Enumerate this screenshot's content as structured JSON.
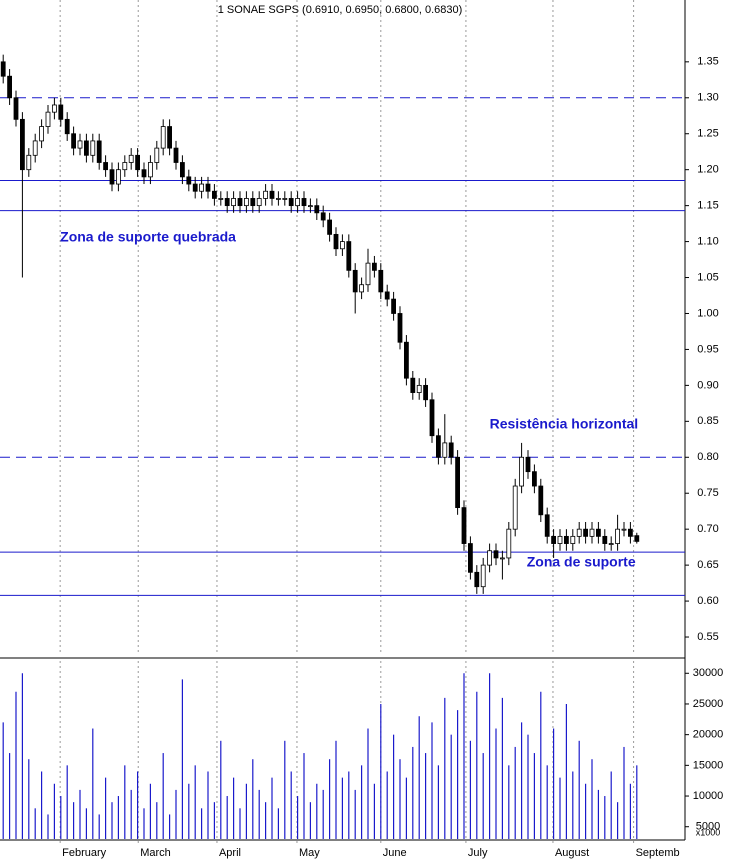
{
  "chart_data": [
    {
      "type": "candlestick",
      "title": "1 SONAE SGPS (0.6910, 0.6950, 0.6800, 0.6830)",
      "open": [
        1.35,
        1.33,
        1.3,
        1.27,
        1.2,
        1.22,
        1.24,
        1.26,
        1.28,
        1.29,
        1.27,
        1.25,
        1.23,
        1.24,
        1.22,
        1.24,
        1.21,
        1.2,
        1.18,
        1.2,
        1.21,
        1.22,
        1.2,
        1.19,
        1.21,
        1.23,
        1.26,
        1.23,
        1.21,
        1.19,
        1.18,
        1.17,
        1.18,
        1.17,
        1.16,
        1.16,
        1.15,
        1.16,
        1.15,
        1.16,
        1.15,
        1.16,
        1.17,
        1.16,
        1.16,
        1.16,
        1.15,
        1.16,
        1.15,
        1.15,
        1.14,
        1.13,
        1.11,
        1.09,
        1.1,
        1.06,
        1.03,
        1.04,
        1.07,
        1.06,
        1.03,
        1.02,
        1.0,
        0.96,
        0.91,
        0.89,
        0.9,
        0.88,
        0.83,
        0.8,
        0.82,
        0.8,
        0.73,
        0.68,
        0.64,
        0.62,
        0.65,
        0.67,
        0.66,
        0.66,
        0.7,
        0.76,
        0.8,
        0.78,
        0.76,
        0.72,
        0.69,
        0.68,
        0.69,
        0.68,
        0.69,
        0.7,
        0.69,
        0.7,
        0.69,
        0.68,
        0.68,
        0.7,
        0.7,
        0.691
      ],
      "high": [
        1.36,
        1.34,
        1.31,
        1.28,
        1.23,
        1.25,
        1.27,
        1.29,
        1.3,
        1.3,
        1.28,
        1.26,
        1.25,
        1.25,
        1.25,
        1.25,
        1.22,
        1.21,
        1.21,
        1.22,
        1.23,
        1.23,
        1.21,
        1.22,
        1.24,
        1.27,
        1.27,
        1.24,
        1.22,
        1.2,
        1.19,
        1.19,
        1.19,
        1.18,
        1.17,
        1.17,
        1.17,
        1.17,
        1.17,
        1.17,
        1.17,
        1.18,
        1.18,
        1.17,
        1.17,
        1.17,
        1.17,
        1.17,
        1.16,
        1.16,
        1.15,
        1.14,
        1.12,
        1.11,
        1.11,
        1.07,
        1.05,
        1.09,
        1.08,
        1.07,
        1.04,
        1.03,
        1.01,
        0.97,
        0.92,
        0.91,
        0.91,
        0.89,
        0.84,
        0.86,
        0.83,
        0.81,
        0.74,
        0.69,
        0.65,
        0.66,
        0.68,
        0.68,
        0.67,
        0.71,
        0.77,
        0.82,
        0.81,
        0.79,
        0.77,
        0.73,
        0.7,
        0.7,
        0.7,
        0.7,
        0.71,
        0.71,
        0.71,
        0.71,
        0.7,
        0.69,
        0.72,
        0.71,
        0.71,
        0.695
      ],
      "low": [
        1.32,
        1.29,
        1.26,
        1.05,
        1.19,
        1.21,
        1.23,
        1.25,
        1.27,
        1.26,
        1.24,
        1.22,
        1.22,
        1.21,
        1.21,
        1.2,
        1.19,
        1.17,
        1.17,
        1.19,
        1.2,
        1.19,
        1.18,
        1.18,
        1.2,
        1.22,
        1.22,
        1.2,
        1.18,
        1.17,
        1.16,
        1.16,
        1.16,
        1.15,
        1.15,
        1.14,
        1.14,
        1.14,
        1.14,
        1.14,
        1.14,
        1.15,
        1.15,
        1.15,
        1.15,
        1.14,
        1.14,
        1.14,
        1.14,
        1.13,
        1.12,
        1.1,
        1.08,
        1.08,
        1.05,
        1.0,
        1.02,
        1.03,
        1.05,
        1.02,
        1.01,
        0.99,
        0.95,
        0.9,
        0.88,
        0.88,
        0.87,
        0.82,
        0.79,
        0.79,
        0.79,
        0.72,
        0.67,
        0.63,
        0.61,
        0.61,
        0.64,
        0.65,
        0.63,
        0.65,
        0.69,
        0.75,
        0.77,
        0.75,
        0.71,
        0.68,
        0.66,
        0.67,
        0.67,
        0.67,
        0.68,
        0.68,
        0.68,
        0.68,
        0.67,
        0.67,
        0.67,
        0.69,
        0.68,
        0.68
      ],
      "close": [
        1.33,
        1.3,
        1.27,
        1.2,
        1.22,
        1.24,
        1.26,
        1.28,
        1.29,
        1.27,
        1.25,
        1.23,
        1.24,
        1.22,
        1.24,
        1.21,
        1.2,
        1.18,
        1.2,
        1.21,
        1.22,
        1.2,
        1.19,
        1.21,
        1.23,
        1.26,
        1.23,
        1.21,
        1.19,
        1.18,
        1.17,
        1.18,
        1.17,
        1.16,
        1.16,
        1.15,
        1.16,
        1.15,
        1.16,
        1.15,
        1.16,
        1.17,
        1.16,
        1.16,
        1.16,
        1.15,
        1.16,
        1.15,
        1.15,
        1.14,
        1.13,
        1.11,
        1.09,
        1.1,
        1.06,
        1.03,
        1.04,
        1.07,
        1.06,
        1.03,
        1.02,
        1.0,
        0.96,
        0.91,
        0.89,
        0.9,
        0.88,
        0.83,
        0.8,
        0.82,
        0.8,
        0.73,
        0.68,
        0.64,
        0.62,
        0.65,
        0.67,
        0.66,
        0.66,
        0.7,
        0.76,
        0.8,
        0.78,
        0.76,
        0.72,
        0.69,
        0.68,
        0.69,
        0.68,
        0.69,
        0.7,
        0.69,
        0.7,
        0.69,
        0.68,
        0.68,
        0.7,
        0.7,
        0.69,
        0.683
      ],
      "xlim": [
        0,
        100
      ],
      "ylim": [
        0.525,
        1.436
      ],
      "yticks": [
        {
          "value": 1.35,
          "label": "1.35"
        },
        {
          "value": 1.3,
          "label": "1.30"
        },
        {
          "value": 1.25,
          "label": "1.25"
        },
        {
          "value": 1.2,
          "label": "1.20"
        },
        {
          "value": 1.15,
          "label": "1.15"
        },
        {
          "value": 1.1,
          "label": "1.10"
        },
        {
          "value": 1.05,
          "label": "1.05"
        },
        {
          "value": 1,
          "label": "1.00"
        },
        {
          "value": 0.95,
          "label": "0.95"
        },
        {
          "value": 0.9,
          "label": "0.90"
        },
        {
          "value": 0.85,
          "label": "0.85"
        },
        {
          "value": 0.8,
          "label": "0.80"
        },
        {
          "value": 0.75,
          "label": "0.75"
        },
        {
          "value": 0.7,
          "label": "0.70"
        },
        {
          "value": 0.65,
          "label": "0.65"
        },
        {
          "value": 0.6,
          "label": "0.60"
        },
        {
          "value": 0.55,
          "label": "0.55"
        }
      ],
      "up_color": "#ffffff",
      "down_color": "#000000",
      "line_color": "#1a1acc",
      "reference_lines": [
        {
          "value": 1.3,
          "style": "dashed"
        },
        {
          "value": 1.185,
          "style": "solid"
        },
        {
          "value": 1.143,
          "style": "solid"
        },
        {
          "value": 0.8,
          "style": "dashed"
        },
        {
          "value": 0.668,
          "style": "solid"
        },
        {
          "value": 0.608,
          "style": "solid"
        }
      ],
      "annotations": [
        {
          "text": "Zona de suporte quebrada",
          "x": 9.4,
          "y": 1.105
        },
        {
          "text": "Resistência horizontal",
          "x": 76.5,
          "y": 0.845
        },
        {
          "text": "Zona de suporte",
          "x": 82.3,
          "y": 0.653
        }
      ]
    },
    {
      "type": "bar",
      "color": "#1a1acc",
      "unit_label": "x1000",
      "values": [
        22000,
        17000,
        27000,
        30000,
        16000,
        8000,
        14000,
        7000,
        12000,
        10000,
        15000,
        9000,
        11000,
        8000,
        21000,
        7000,
        13000,
        9000,
        10000,
        15000,
        11000,
        14000,
        8000,
        12000,
        9000,
        17000,
        7000,
        11000,
        29000,
        12000,
        15000,
        8000,
        14000,
        9000,
        19000,
        10000,
        13000,
        8000,
        12000,
        16000,
        11000,
        9000,
        13000,
        8000,
        19000,
        14000,
        10000,
        17000,
        9000,
        12000,
        11000,
        16000,
        19000,
        13000,
        14000,
        11000,
        15000,
        21000,
        12000,
        25000,
        14000,
        20000,
        16000,
        13000,
        18000,
        23000,
        17000,
        22000,
        15000,
        26000,
        20000,
        24000,
        30000,
        19000,
        27000,
        17000,
        30000,
        21000,
        26000,
        15000,
        18000,
        22000,
        20000,
        17000,
        27000,
        15000,
        21000,
        13000,
        25000,
        14000,
        19000,
        12000,
        16000,
        11000,
        10000,
        14000,
        9000,
        18000,
        12000,
        15000
      ],
      "xlim": [
        0,
        100
      ],
      "ylim": [
        3000,
        32000
      ],
      "yticks": [
        5000,
        10000,
        15000,
        20000,
        25000,
        30000
      ],
      "xticks": [
        {
          "value": 9.4,
          "label": "February"
        },
        {
          "value": 21.6,
          "label": "March"
        },
        {
          "value": 33.9,
          "label": "April"
        },
        {
          "value": 46.4,
          "label": "May"
        },
        {
          "value": 59.5,
          "label": "June"
        },
        {
          "value": 72.8,
          "label": "July"
        },
        {
          "value": 86.4,
          "label": "August"
        },
        {
          "value": 99,
          "label": "Septemb"
        }
      ]
    }
  ]
}
